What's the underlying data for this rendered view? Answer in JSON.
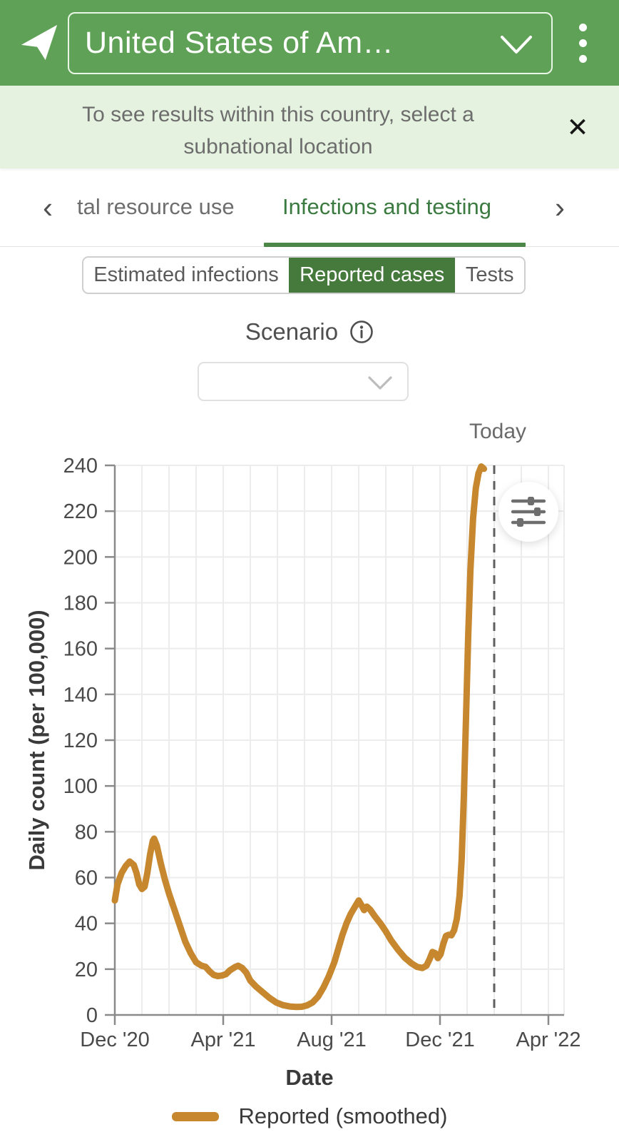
{
  "colors": {
    "header_green": "#5fa156",
    "banner_green": "#e4f2df",
    "accent_green": "#46793c",
    "tab_active_green": "#3b7a40",
    "underline_green": "#4c8748",
    "line_orange": "#c6872e",
    "axis_gray": "#8a8a8a",
    "grid_gray": "#ececec",
    "tick_text_gray": "#4a4a4a"
  },
  "header": {
    "location_label": "United States of Am…",
    "nav_arrow_icon": "navigate-location-arrow",
    "menu_icon": "kebab-menu"
  },
  "banner": {
    "text": "To see results within this country, select a subnational location",
    "close_glyph": "✕"
  },
  "tabs": {
    "prev_glyph": "‹",
    "next_glyph": "›",
    "items": [
      {
        "label": "tal resource use",
        "active": false
      },
      {
        "label": "Infections and testing",
        "active": true
      }
    ]
  },
  "segmented": {
    "options": [
      {
        "label": "Estimated infections",
        "selected": false
      },
      {
        "label": "Reported cases",
        "selected": true
      },
      {
        "label": "Tests",
        "selected": false
      }
    ]
  },
  "scenario": {
    "label": "Scenario",
    "info_icon": "info-circle",
    "dropdown_value": ""
  },
  "chart_data": {
    "type": "line",
    "title": "",
    "xlabel": "Date",
    "ylabel": "Daily count (per 100,000)",
    "ylim": [
      0,
      240
    ],
    "y_tick_step": 20,
    "grid": true,
    "legend_position": "bottom",
    "x_unit": "months since Dec 1 2020",
    "x_ticks": [
      {
        "month": 0,
        "label": "Dec '20"
      },
      {
        "month": 4,
        "label": "Apr '21"
      },
      {
        "month": 8,
        "label": "Aug '21"
      },
      {
        "month": 12,
        "label": "Dec '21"
      },
      {
        "month": 16,
        "label": "Apr '22"
      }
    ],
    "today_marker": {
      "month": 14,
      "label": "Today"
    },
    "series": [
      {
        "name": "Reported (smoothed)",
        "color": "#c6872e",
        "points": [
          [
            0,
            50
          ],
          [
            0.1,
            57
          ],
          [
            0.25,
            62
          ],
          [
            0.4,
            65
          ],
          [
            0.55,
            67
          ],
          [
            0.7,
            65.5
          ],
          [
            0.8,
            62
          ],
          [
            0.9,
            57
          ],
          [
            1.0,
            55
          ],
          [
            1.1,
            56
          ],
          [
            1.2,
            62
          ],
          [
            1.3,
            70
          ],
          [
            1.4,
            76
          ],
          [
            1.45,
            77
          ],
          [
            1.55,
            74
          ],
          [
            1.7,
            66
          ],
          [
            1.85,
            59
          ],
          [
            2.0,
            53
          ],
          [
            2.2,
            46
          ],
          [
            2.4,
            39
          ],
          [
            2.6,
            32
          ],
          [
            2.8,
            27
          ],
          [
            3.0,
            23
          ],
          [
            3.2,
            21.5
          ],
          [
            3.35,
            21
          ],
          [
            3.5,
            19
          ],
          [
            3.65,
            17.5
          ],
          [
            3.8,
            17
          ],
          [
            3.95,
            17.2
          ],
          [
            4.1,
            17.8
          ],
          [
            4.25,
            19.5
          ],
          [
            4.45,
            21
          ],
          [
            4.55,
            21.5
          ],
          [
            4.7,
            20.5
          ],
          [
            4.85,
            18.5
          ],
          [
            5.0,
            15
          ],
          [
            5.2,
            12.5
          ],
          [
            5.45,
            10
          ],
          [
            5.7,
            7.5
          ],
          [
            5.95,
            5.5
          ],
          [
            6.2,
            4.3
          ],
          [
            6.45,
            3.7
          ],
          [
            6.7,
            3.5
          ],
          [
            6.9,
            3.6
          ],
          [
            7.1,
            4.2
          ],
          [
            7.3,
            5.5
          ],
          [
            7.5,
            8
          ],
          [
            7.7,
            12
          ],
          [
            7.9,
            17
          ],
          [
            8.1,
            23
          ],
          [
            8.2,
            27
          ],
          [
            8.4,
            35
          ],
          [
            8.55,
            40
          ],
          [
            8.7,
            44
          ],
          [
            8.85,
            47
          ],
          [
            9.0,
            50
          ],
          [
            9.1,
            48
          ],
          [
            9.2,
            45.8
          ],
          [
            9.3,
            47.3
          ],
          [
            9.42,
            46
          ],
          [
            9.6,
            43
          ],
          [
            9.8,
            40
          ],
          [
            10.0,
            36.5
          ],
          [
            10.2,
            32.5
          ],
          [
            10.45,
            28.5
          ],
          [
            10.7,
            25
          ],
          [
            10.95,
            22.5
          ],
          [
            11.15,
            21
          ],
          [
            11.35,
            20.5
          ],
          [
            11.5,
            21.5
          ],
          [
            11.62,
            24.5
          ],
          [
            11.72,
            27.5
          ],
          [
            11.82,
            27
          ],
          [
            11.92,
            24.8
          ],
          [
            12.02,
            26.5
          ],
          [
            12.12,
            31
          ],
          [
            12.22,
            34.5
          ],
          [
            12.32,
            35
          ],
          [
            12.42,
            34.8
          ],
          [
            12.52,
            37
          ],
          [
            12.62,
            42
          ],
          [
            12.72,
            52
          ],
          [
            12.8,
            68
          ],
          [
            12.88,
            95
          ],
          [
            12.96,
            130
          ],
          [
            13.04,
            165
          ],
          [
            13.12,
            194
          ],
          [
            13.22,
            217
          ],
          [
            13.32,
            230
          ],
          [
            13.42,
            236.5
          ],
          [
            13.52,
            239.5
          ],
          [
            13.62,
            238.5
          ]
        ]
      }
    ]
  },
  "legend": {
    "label": "Reported (smoothed)"
  }
}
